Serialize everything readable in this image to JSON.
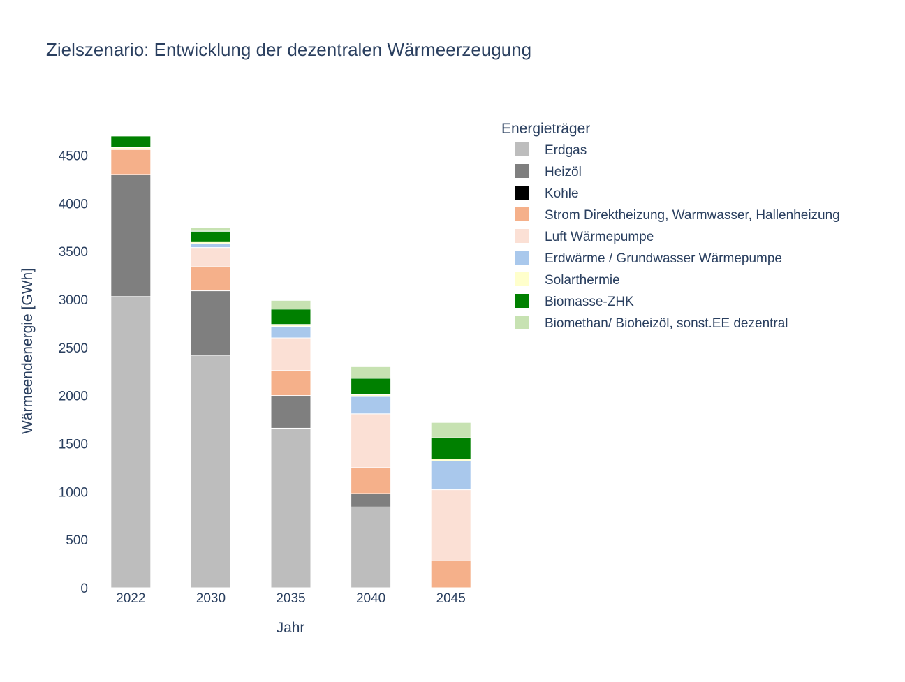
{
  "chart_data": {
    "type": "bar",
    "stacked": true,
    "title": "Zielszenario: Entwicklung der dezentralen Wärmeerzeugung",
    "xlabel": "Jahr",
    "ylabel": "Wärmeendenergie [GWh]",
    "ylim": [
      0,
      4750
    ],
    "yticks": [
      0,
      500,
      1000,
      1500,
      2000,
      2500,
      3000,
      3500,
      4000,
      4500
    ],
    "categories": [
      "2022",
      "2030",
      "2035",
      "2040",
      "2045"
    ],
    "legend_title": "Energieträger",
    "legend_position": "right",
    "grid": false,
    "series": [
      {
        "name": "Erdgas",
        "color": "#bdbdbd",
        "values": [
          3030,
          2420,
          1660,
          840,
          0
        ]
      },
      {
        "name": "Heizöl",
        "color": "#7f7f7f",
        "values": [
          1270,
          670,
          340,
          140,
          0
        ]
      },
      {
        "name": "Kohle",
        "color": "#000000",
        "values": [
          0,
          0,
          0,
          0,
          0
        ]
      },
      {
        "name": "Strom Direktheizung, Warmwasser, Hallenheizung",
        "color": "#f5b08a",
        "values": [
          260,
          250,
          260,
          270,
          280
        ]
      },
      {
        "name": "Luft Wärmepumpe",
        "color": "#fbe0d5",
        "values": [
          0,
          200,
          340,
          560,
          740
        ]
      },
      {
        "name": "Erdwärme / Grundwasser Wärmepumpe",
        "color": "#a9c8ec",
        "values": [
          0,
          40,
          120,
          180,
          300
        ]
      },
      {
        "name": "Solarthermie",
        "color": "#ffffcc",
        "values": [
          20,
          20,
          20,
          20,
          20
        ]
      },
      {
        "name": "Biomasse-ZHK",
        "color": "#008000",
        "values": [
          120,
          110,
          160,
          170,
          220
        ]
      },
      {
        "name": "Biomethan/ Bioheizöl, sonst.EE dezentral",
        "color": "#c7e2b2",
        "values": [
          0,
          40,
          90,
          120,
          160
        ]
      }
    ]
  }
}
